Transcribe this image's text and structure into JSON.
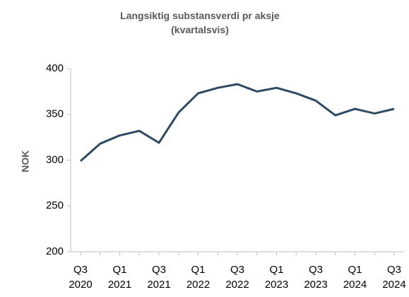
{
  "chart_data": {
    "type": "line",
    "title": "Langsiktig substansverdi pr aksje (kvartalsvis)",
    "y_label": "NOK",
    "categories": [
      "Q3 2020",
      null,
      "Q1 2021",
      null,
      "Q3 2021",
      null,
      "Q1 2022",
      null,
      "Q3 2022",
      null,
      "Q1 2023",
      null,
      "Q3 2023",
      null,
      "Q1 2024",
      null,
      "Q3 2024"
    ],
    "series": [
      {
        "name": "Langsiktig substansverdi",
        "color": "#2e4a62",
        "values": [
          299,
          318,
          327,
          332,
          319,
          352,
          373,
          379,
          383,
          375,
          379,
          373,
          365,
          349,
          356,
          351,
          356
        ]
      }
    ],
    "ylim": [
      200,
      400
    ],
    "yticks": [
      200,
      250,
      300,
      350,
      400
    ],
    "grid": false
  }
}
